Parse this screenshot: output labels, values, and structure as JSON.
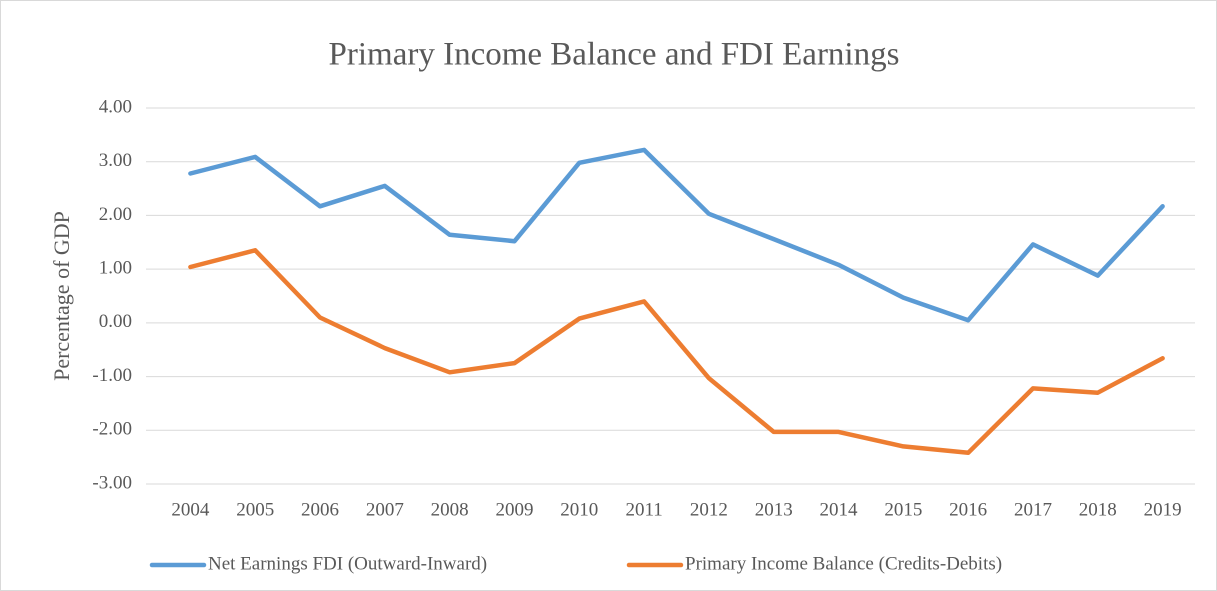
{
  "chart_data": {
    "type": "line",
    "title": "Primary Income Balance and FDI Earnings",
    "y_label": "Percentage of GDP",
    "categories": [
      "2004",
      "2005",
      "2006",
      "2007",
      "2008",
      "2009",
      "2010",
      "2011",
      "2012",
      "2013",
      "2014",
      "2015",
      "2016",
      "2017",
      "2018",
      "2019"
    ],
    "series": [
      {
        "name": "Net Earnings FDI (Outward-Inward)",
        "color": "#5b9bd5",
        "values": [
          2.78,
          3.09,
          2.17,
          2.55,
          1.64,
          1.52,
          2.98,
          3.22,
          2.03,
          1.56,
          1.08,
          0.47,
          0.05,
          1.46,
          0.88,
          2.17
        ]
      },
      {
        "name": "Primary Income Balance (Credits-Debits)",
        "color": "#ed7d31",
        "values": [
          1.04,
          1.35,
          0.1,
          -0.47,
          -0.92,
          -0.75,
          0.08,
          0.4,
          -1.03,
          -2.03,
          -2.03,
          -2.3,
          -2.42,
          -1.22,
          -1.3,
          -0.66
        ]
      }
    ],
    "ylim": [
      -3,
      4
    ],
    "yticks": [
      {
        "value": -3,
        "label": "-3.00"
      },
      {
        "value": -2,
        "label": "-2.00"
      },
      {
        "value": -1,
        "label": "-1.00"
      },
      {
        "value": 0,
        "label": "0.00"
      },
      {
        "value": 1,
        "label": "1.00"
      },
      {
        "value": 2,
        "label": "2.00"
      },
      {
        "value": 3,
        "label": "3.00"
      },
      {
        "value": 4,
        "label": "4.00"
      }
    ],
    "grid": true,
    "legend": "bottom"
  }
}
